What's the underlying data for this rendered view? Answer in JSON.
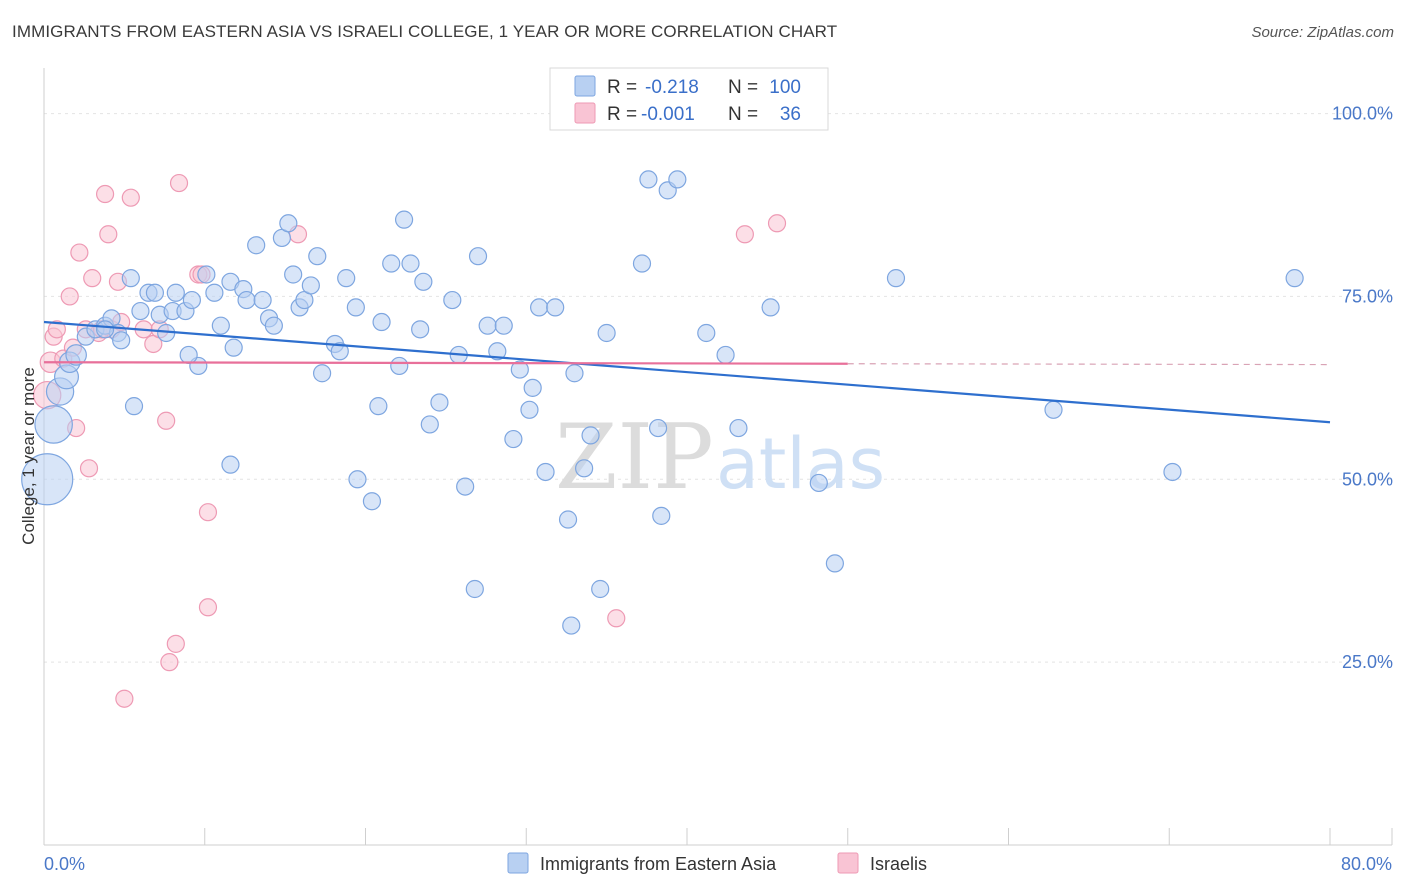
{
  "header": {
    "title": "IMMIGRANTS FROM EASTERN ASIA VS ISRAELI COLLEGE, 1 YEAR OR MORE CORRELATION CHART",
    "source": "Source: ZipAtlas.com"
  },
  "watermark": {
    "zip": "ZIP",
    "atlas": "atlas"
  },
  "legend": {
    "rows": [
      {
        "r_label": "R =",
        "r_value": "-0.218",
        "n_label": "N =",
        "n_value": "100"
      },
      {
        "r_label": "R =",
        "r_value": "-0.001",
        "n_label": "N =",
        "n_value": "36"
      }
    ]
  },
  "bottom_legend": {
    "items": [
      {
        "label": "Immigrants from Eastern Asia"
      },
      {
        "label": "Israelis"
      }
    ]
  },
  "colors": {
    "blue_fill": "#b8d0f2",
    "blue_stroke": "#7ea6e0",
    "blue_line": "#2e6fce",
    "pink_fill": "#f9c4d4",
    "pink_stroke": "#ee9ab4",
    "pink_line": "#e8709a",
    "tick_label": "#4a78c8"
  },
  "chart_data": {
    "type": "scatter",
    "title": "IMMIGRANTS FROM EASTERN ASIA VS ISRAELI COLLEGE, 1 YEAR OR MORE CORRELATION CHART",
    "xlabel": "",
    "ylabel": "College, 1 year or more",
    "xlim": [
      0,
      80
    ],
    "ylim": [
      0,
      105
    ],
    "x_tick_labels": [
      "0.0%",
      "80.0%"
    ],
    "y_ticks": [
      25,
      50,
      75,
      100
    ],
    "y_tick_labels": [
      "25.0%",
      "50.0%",
      "75.0%",
      "100.0%"
    ],
    "grid": true,
    "series": [
      {
        "name": "Immigrants from Eastern Asia",
        "r": -0.218,
        "n": 100,
        "trend": {
          "x0": 0,
          "y0": 71.5,
          "x1": 80,
          "y1": 57.8
        },
        "points": [
          [
            0.2,
            50.0,
            3
          ],
          [
            0.6,
            57.5,
            2.2
          ],
          [
            1.0,
            62.0,
            1.6
          ],
          [
            1.4,
            64.0,
            1.4
          ],
          [
            1.6,
            66.0,
            1.2
          ],
          [
            2.0,
            67.0,
            1.2
          ],
          [
            2.6,
            69.5,
            1
          ],
          [
            3.2,
            70.5,
            1
          ],
          [
            3.8,
            71.0,
            1
          ],
          [
            4.2,
            72.0,
            1
          ],
          [
            4.6,
            70.0,
            1
          ],
          [
            4.8,
            69.0,
            1
          ],
          [
            5.4,
            77.5,
            1
          ],
          [
            5.6,
            60.0,
            1
          ],
          [
            6.0,
            73.0,
            1
          ],
          [
            6.5,
            75.5,
            1
          ],
          [
            6.9,
            75.5,
            1
          ],
          [
            7.2,
            72.5,
            1
          ],
          [
            7.6,
            70.0,
            1
          ],
          [
            8.0,
            73.0,
            1
          ],
          [
            8.2,
            75.5,
            1
          ],
          [
            8.8,
            73.0,
            1
          ],
          [
            9.2,
            74.5,
            1
          ],
          [
            9.6,
            65.5,
            1
          ],
          [
            10.1,
            78.0,
            1
          ],
          [
            10.6,
            75.5,
            1
          ],
          [
            11.0,
            71.0,
            1
          ],
          [
            11.6,
            77.0,
            1
          ],
          [
            11.8,
            68.0,
            1
          ],
          [
            12.4,
            76.0,
            1
          ],
          [
            12.6,
            74.5,
            1
          ],
          [
            13.2,
            82.0,
            1
          ],
          [
            13.6,
            74.5,
            1
          ],
          [
            14.0,
            72.0,
            1
          ],
          [
            14.3,
            71.0,
            1
          ],
          [
            14.8,
            83.0,
            1
          ],
          [
            15.2,
            85.0,
            1
          ],
          [
            15.5,
            78.0,
            1
          ],
          [
            15.9,
            73.5,
            1
          ],
          [
            16.2,
            74.5,
            1
          ],
          [
            16.6,
            76.5,
            1
          ],
          [
            17.0,
            80.5,
            1
          ],
          [
            17.3,
            64.5,
            1
          ],
          [
            18.1,
            68.5,
            1
          ],
          [
            18.4,
            67.5,
            1
          ],
          [
            18.8,
            77.5,
            1
          ],
          [
            19.4,
            73.5,
            1
          ],
          [
            19.5,
            50.0,
            1
          ],
          [
            20.4,
            47.0,
            1
          ],
          [
            20.8,
            60.0,
            1
          ],
          [
            21.0,
            71.5,
            1
          ],
          [
            21.6,
            79.5,
            1
          ],
          [
            22.1,
            65.5,
            1
          ],
          [
            22.4,
            85.5,
            1
          ],
          [
            22.8,
            79.5,
            1
          ],
          [
            23.4,
            70.5,
            1
          ],
          [
            23.6,
            77.0,
            1
          ],
          [
            24.0,
            57.5,
            1
          ],
          [
            24.6,
            60.5,
            1
          ],
          [
            25.4,
            74.5,
            1
          ],
          [
            25.8,
            67.0,
            1
          ],
          [
            26.2,
            49.0,
            1
          ],
          [
            26.8,
            35.0,
            1
          ],
          [
            27.0,
            80.5,
            1
          ],
          [
            27.6,
            71.0,
            1
          ],
          [
            28.2,
            67.5,
            1
          ],
          [
            28.6,
            71.0,
            1
          ],
          [
            29.2,
            55.5,
            1
          ],
          [
            29.6,
            65.0,
            1
          ],
          [
            30.2,
            59.5,
            1
          ],
          [
            30.4,
            62.5,
            1
          ],
          [
            30.8,
            73.5,
            1
          ],
          [
            31.2,
            51.0,
            1
          ],
          [
            31.8,
            73.5,
            1
          ],
          [
            32.6,
            44.5,
            1
          ],
          [
            32.8,
            30.0,
            1
          ],
          [
            33.0,
            64.5,
            1
          ],
          [
            33.6,
            51.5,
            1
          ],
          [
            34.0,
            56.0,
            1
          ],
          [
            34.6,
            35.0,
            1
          ],
          [
            35.0,
            70.0,
            1
          ],
          [
            37.2,
            79.5,
            1
          ],
          [
            37.6,
            91.0,
            1
          ],
          [
            38.2,
            57.0,
            1
          ],
          [
            38.4,
            45.0,
            1
          ],
          [
            38.8,
            89.5,
            1
          ],
          [
            39.4,
            91.0,
            1
          ],
          [
            41.2,
            70.0,
            1
          ],
          [
            42.4,
            67.0,
            1
          ],
          [
            43.2,
            57.0,
            1
          ],
          [
            45.2,
            73.5,
            1
          ],
          [
            48.2,
            49.5,
            1
          ],
          [
            49.2,
            38.5,
            1
          ],
          [
            53.0,
            77.5,
            1
          ],
          [
            62.8,
            59.5,
            1
          ],
          [
            70.2,
            51.0,
            1
          ],
          [
            77.8,
            77.5,
            1
          ],
          [
            3.8,
            70.5,
            1
          ],
          [
            9.0,
            67.0,
            1
          ],
          [
            11.6,
            52.0,
            1
          ]
        ]
      },
      {
        "name": "Israelis",
        "r": -0.001,
        "n": 36,
        "trend": {
          "x0": 0,
          "y0": 66.0,
          "x1": 50,
          "y1": 65.8
        },
        "points": [
          [
            0.2,
            61.5,
            1.6
          ],
          [
            0.4,
            66.0,
            1.2
          ],
          [
            0.6,
            69.5,
            1
          ],
          [
            0.8,
            70.5,
            1
          ],
          [
            1.2,
            66.5,
            1
          ],
          [
            1.6,
            75.0,
            1
          ],
          [
            1.8,
            68.0,
            1
          ],
          [
            2.0,
            57.0,
            1
          ],
          [
            2.2,
            81.0,
            1
          ],
          [
            2.6,
            70.5,
            1
          ],
          [
            2.8,
            51.5,
            1
          ],
          [
            3.0,
            77.5,
            1
          ],
          [
            3.4,
            70.0,
            1
          ],
          [
            3.8,
            89.0,
            1
          ],
          [
            4.0,
            83.5,
            1
          ],
          [
            4.2,
            70.5,
            1
          ],
          [
            4.6,
            77.0,
            1
          ],
          [
            4.8,
            71.5,
            1
          ],
          [
            5.0,
            20.0,
            1
          ],
          [
            5.4,
            88.5,
            1
          ],
          [
            6.2,
            70.5,
            1
          ],
          [
            6.8,
            68.5,
            1
          ],
          [
            7.2,
            70.5,
            1
          ],
          [
            7.6,
            58.0,
            1
          ],
          [
            7.8,
            25.0,
            1
          ],
          [
            8.2,
            27.5,
            1
          ],
          [
            8.4,
            90.5,
            1
          ],
          [
            9.6,
            78.0,
            1
          ],
          [
            10.2,
            45.5,
            1
          ],
          [
            10.2,
            32.5,
            1
          ],
          [
            15.8,
            83.5,
            1
          ],
          [
            35.6,
            31.0,
            1
          ],
          [
            43.6,
            83.5,
            1
          ],
          [
            45.6,
            85.0,
            1
          ],
          [
            3.6,
            70.5,
            1
          ],
          [
            9.8,
            78.0,
            1
          ]
        ]
      }
    ]
  }
}
